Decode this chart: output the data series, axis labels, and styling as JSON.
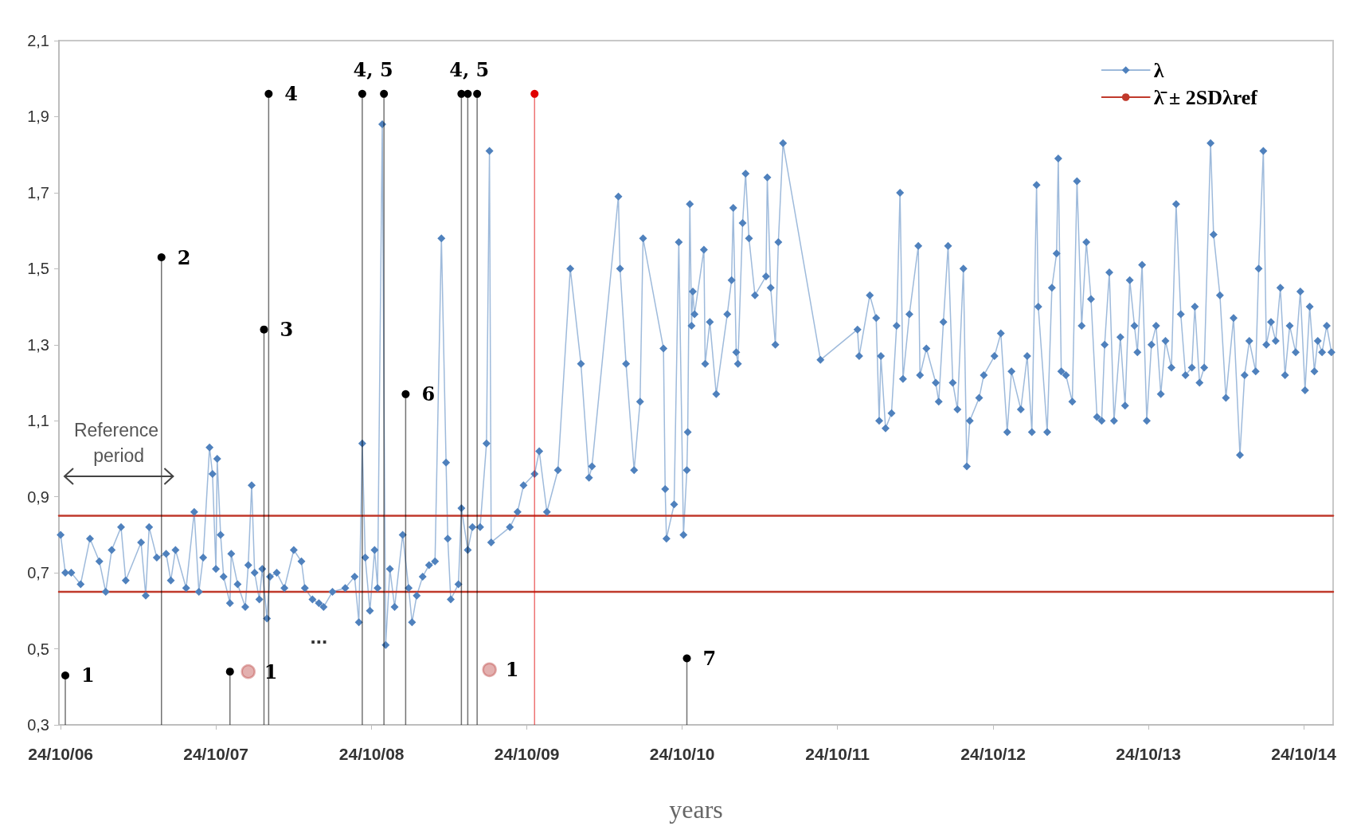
{
  "chart_data": {
    "type": "line",
    "xlabel": "years",
    "xlim": [
      "2006-10-20",
      "2015-01-01"
    ],
    "xticks": [
      {
        "value": "2006-10-24",
        "label": "24/10/06"
      },
      {
        "value": "2007-10-24",
        "label": "24/10/07"
      },
      {
        "value": "2008-10-24",
        "label": "24/10/08"
      },
      {
        "value": "2009-10-24",
        "label": "24/10/09"
      },
      {
        "value": "2010-10-24",
        "label": "24/10/10"
      },
      {
        "value": "2011-10-24",
        "label": "24/10/11"
      },
      {
        "value": "2012-10-24",
        "label": "24/10/12"
      },
      {
        "value": "2013-10-24",
        "label": "24/10/13"
      },
      {
        "value": "2014-10-24",
        "label": "24/10/14"
      }
    ],
    "ylim": [
      0.3,
      2.1
    ],
    "yticks": [
      {
        "value": 0.3,
        "label": "0,3"
      },
      {
        "value": 0.5,
        "label": "0,5"
      },
      {
        "value": 0.7,
        "label": "0,7"
      },
      {
        "value": 0.9,
        "label": "0,9"
      },
      {
        "value": 1.1,
        "label": "1,1"
      },
      {
        "value": 1.3,
        "label": "1,3"
      },
      {
        "value": 1.5,
        "label": "1,5"
      },
      {
        "value": 1.7,
        "label": "1,7"
      },
      {
        "value": 1.9,
        "label": "1,9"
      },
      {
        "value": 2.1,
        "label": "2,1"
      }
    ],
    "legend": "top right",
    "marker": "diamond",
    "series": [
      {
        "name": "λ",
        "color": "#4f81bd",
        "x": [
          "2006-10-24",
          "2006-11-04",
          "2006-11-18",
          "2006-12-10",
          "2007-01-01",
          "2007-01-23",
          "2007-02-07",
          "2007-02-21",
          "2007-03-15",
          "2007-03-26",
          "2007-05-01",
          "2007-05-12",
          "2007-05-20",
          "2007-06-07",
          "2007-06-29",
          "2007-07-10",
          "2007-07-21",
          "2007-08-15",
          "2007-09-03",
          "2007-09-14",
          "2007-09-24",
          "2007-10-09",
          "2007-10-16",
          "2007-10-24",
          "2007-10-27",
          "2007-11-04",
          "2007-11-11",
          "2007-11-26",
          "2007-11-29",
          "2007-12-14",
          "2008-01-01",
          "2008-01-08",
          "2008-01-16",
          "2008-01-23",
          "2008-02-03",
          "2008-02-10",
          "2008-02-21",
          "2008-02-28",
          "2008-03-15",
          "2008-04-02",
          "2008-04-24",
          "2008-05-12",
          "2008-05-20",
          "2008-06-07",
          "2008-06-22",
          "2008-07-03",
          "2008-07-24",
          "2008-08-23",
          "2008-09-14",
          "2008-09-24",
          "2008-10-02",
          "2008-10-09",
          "2008-10-20",
          "2008-10-31",
          "2008-11-07",
          "2008-11-18",
          "2008-11-26",
          "2008-12-06",
          "2008-12-17",
          "2009-01-05",
          "2009-01-19",
          "2009-01-27",
          "2009-02-07",
          "2009-02-21",
          "2009-03-08",
          "2009-03-22",
          "2009-04-06",
          "2009-04-17",
          "2009-04-21",
          "2009-04-28",
          "2009-05-16",
          "2009-05-23",
          "2009-06-07",
          "2009-06-18",
          "2009-07-06",
          "2009-07-21",
          "2009-07-28",
          "2009-08-01",
          "2009-09-14",
          "2009-10-02",
          "2009-10-16",
          "2009-11-11",
          "2009-11-22",
          "2009-12-10",
          "2010-01-05",
          "2010-02-03",
          "2010-02-28",
          "2010-03-19",
          "2010-03-26",
          "2010-05-27",
          "2010-05-31",
          "2010-06-14",
          "2010-07-03",
          "2010-07-17",
          "2010-07-24",
          "2010-09-10",
          "2010-09-14",
          "2010-09-17",
          "2010-10-05",
          "2010-10-16",
          "2010-10-27",
          "2010-11-04",
          "2010-11-06",
          "2010-11-11",
          "2010-11-15",
          "2010-11-18",
          "2010-11-22",
          "2010-12-14",
          "2010-12-17",
          "2010-12-28",
          "2011-01-12",
          "2011-02-07",
          "2011-02-17",
          "2011-02-21",
          "2011-02-28",
          "2011-03-04",
          "2011-03-15",
          "2011-03-22",
          "2011-03-30",
          "2011-04-13",
          "2011-05-09",
          "2011-05-12",
          "2011-05-20",
          "2011-05-31",
          "2011-06-07",
          "2011-06-18",
          "2011-09-14",
          "2011-12-10",
          "2011-12-14",
          "2012-01-08",
          "2012-01-23",
          "2012-01-30",
          "2012-02-03",
          "2012-02-14",
          "2012-02-28",
          "2012-03-11",
          "2012-03-19",
          "2012-03-26",
          "2012-04-10",
          "2012-05-01",
          "2012-05-05",
          "2012-05-20",
          "2012-06-11",
          "2012-06-18",
          "2012-06-29",
          "2012-07-10",
          "2012-07-21",
          "2012-08-01",
          "2012-08-15",
          "2012-08-23",
          "2012-08-30",
          "2012-09-21",
          "2012-10-02",
          "2012-10-27",
          "2012-11-11",
          "2012-11-26",
          "2012-12-06",
          "2012-12-28",
          "2013-01-12",
          "2013-01-23",
          "2013-02-03",
          "2013-02-07",
          "2013-02-28",
          "2013-03-11",
          "2013-03-22",
          "2013-03-26",
          "2013-04-02",
          "2013-04-13",
          "2013-04-28",
          "2013-05-09",
          "2013-05-20",
          "2013-05-31",
          "2013-06-11",
          "2013-06-25",
          "2013-07-06",
          "2013-07-13",
          "2013-07-24",
          "2013-08-04",
          "2013-08-19",
          "2013-08-30",
          "2013-09-10",
          "2013-09-21",
          "2013-09-28",
          "2013-10-09",
          "2013-10-20",
          "2013-10-31",
          "2013-11-11",
          "2013-11-22",
          "2013-12-03",
          "2013-12-17",
          "2013-12-28",
          "2014-01-08",
          "2014-01-19",
          "2014-02-03",
          "2014-02-10",
          "2014-02-21",
          "2014-03-04",
          "2014-03-19",
          "2014-03-26",
          "2014-04-10",
          "2014-04-24",
          "2014-05-12",
          "2014-05-27",
          "2014-06-07",
          "2014-06-18",
          "2014-07-03",
          "2014-07-10",
          "2014-07-21",
          "2014-07-28",
          "2014-08-08",
          "2014-08-19",
          "2014-08-30",
          "2014-09-10",
          "2014-09-21",
          "2014-10-05",
          "2014-10-16",
          "2014-10-27",
          "2014-11-07",
          "2014-11-18",
          "2014-11-26",
          "2014-12-06",
          "2014-12-17",
          "2014-12-28"
        ],
        "values": [
          0.8,
          0.7,
          0.7,
          0.67,
          0.79,
          0.73,
          0.65,
          0.76,
          0.82,
          0.68,
          0.78,
          0.64,
          0.82,
          0.74,
          0.75,
          0.68,
          0.76,
          0.66,
          0.86,
          0.65,
          0.74,
          1.03,
          0.96,
          0.71,
          1.0,
          0.8,
          0.69,
          0.62,
          0.75,
          0.67,
          0.61,
          0.72,
          0.93,
          0.7,
          0.63,
          0.71,
          0.58,
          0.69,
          0.7,
          0.66,
          0.76,
          0.73,
          0.66,
          0.63,
          0.62,
          0.61,
          0.65,
          0.66,
          0.69,
          0.57,
          1.04,
          0.74,
          0.6,
          0.76,
          0.66,
          1.88,
          0.51,
          0.71,
          0.61,
          0.8,
          0.66,
          0.57,
          0.64,
          0.69,
          0.72,
          0.73,
          1.58,
          0.99,
          0.79,
          0.63,
          0.67,
          0.87,
          0.76,
          0.82,
          0.82,
          1.04,
          1.81,
          0.78,
          0.82,
          0.86,
          0.93,
          0.96,
          1.02,
          0.86,
          0.97,
          1.5,
          1.25,
          0.95,
          0.98,
          1.69,
          1.5,
          1.25,
          0.97,
          1.15,
          1.58,
          1.29,
          0.92,
          0.79,
          0.88,
          1.57,
          0.8,
          0.97,
          1.07,
          1.67,
          1.35,
          1.44,
          1.38,
          1.55,
          1.25,
          1.36,
          1.17,
          1.38,
          1.47,
          1.66,
          1.28,
          1.25,
          1.62,
          1.75,
          1.58,
          1.43,
          1.48,
          1.74,
          1.45,
          1.3,
          1.57,
          1.83,
          1.26,
          1.34,
          1.27,
          1.43,
          1.37,
          1.1,
          1.27,
          1.08,
          1.12,
          1.35,
          1.7,
          1.21,
          1.38,
          1.56,
          1.22,
          1.29,
          1.2,
          1.15,
          1.36,
          1.56,
          1.2,
          1.13,
          1.5,
          0.98,
          1.1,
          1.16,
          1.22,
          1.27,
          1.33,
          1.07,
          1.23,
          1.13,
          1.27,
          1.07,
          1.72,
          1.4,
          1.07,
          1.45,
          1.54,
          1.79,
          1.23,
          1.22,
          1.15,
          1.73,
          1.35,
          1.57,
          1.42,
          1.11,
          1.1,
          1.3,
          1.49,
          1.1,
          1.32,
          1.14,
          1.47,
          1.35,
          1.28,
          1.51,
          1.1,
          1.3,
          1.35,
          1.17,
          1.31,
          1.24,
          1.67,
          1.38,
          1.22,
          1.24,
          1.4,
          1.2,
          1.24,
          1.83,
          1.59,
          1.43,
          1.16,
          1.37,
          1.01,
          1.22,
          1.31,
          1.23,
          1.5,
          1.81,
          1.3,
          1.36,
          1.31,
          1.45,
          1.22,
          1.35,
          1.28,
          1.44,
          1.18,
          1.4,
          1.23,
          1.31,
          1.28,
          1.35,
          1.28
        ]
      },
      {
        "name": "λ̄ ± 2SDλref",
        "type": "line",
        "color": "#c0392b",
        "marker": "none",
        "x": [
          "2006-10-20",
          "2015-01-01"
        ],
        "values": [
          0.85,
          0.85
        ]
      },
      {
        "type": "line",
        "color": "#c0392b",
        "marker": "none",
        "x": [
          "2006-10-20",
          "2015-01-01"
        ],
        "values": [
          0.65,
          0.65
        ]
      },
      {
        "type": "lollipop",
        "color": "#000000",
        "marker": "circle",
        "x": [
          "2006-11-04",
          "2007-06-18",
          "2007-11-26",
          "2008-02-14",
          "2008-02-25",
          "2008-10-02",
          "2008-11-22",
          "2009-01-12",
          "2009-05-23",
          "2009-06-07",
          "2009-06-29",
          "2010-11-04"
        ],
        "values": [
          0.43,
          1.53,
          0.44,
          1.34,
          1.96,
          1.96,
          1.96,
          1.17,
          1.96,
          1.96,
          1.96,
          0.475
        ]
      },
      {
        "type": "lollipop",
        "color": "#e00000",
        "marker": "circle",
        "x": [
          "2009-11-11"
        ],
        "values": [
          1.96
        ]
      },
      {
        "type": "scatter",
        "color": "#c0504d",
        "marker": "circle",
        "x": [
          "2008-01-08",
          "2009-07-28"
        ],
        "values": [
          0.44,
          0.445
        ]
      }
    ],
    "annotations": [
      "Reference period",
      "...",
      {
        "text": "1",
        "x": "2006-11-04",
        "y": 0.43
      },
      {
        "text": "2",
        "x": "2007-06-18",
        "y": 1.53
      },
      {
        "text": "1",
        "x": "2008-01-08",
        "y": 0.44
      },
      {
        "text": "3",
        "x": "2008-02-14",
        "y": 1.34
      },
      {
        "text": "4",
        "x": "2008-02-25",
        "y": 1.96
      },
      {
        "text": "4, 5",
        "x": "2008-10-02",
        "y": 1.96
      },
      {
        "text": "6",
        "x": "2009-01-12",
        "y": 1.17
      },
      {
        "text": "4, 5",
        "x": "2009-05-23",
        "y": 1.96
      },
      {
        "text": "1",
        "x": "2009-07-28",
        "y": 0.445
      },
      {
        "text": "7",
        "x": "2010-11-04",
        "y": 0.475
      }
    ]
  }
}
